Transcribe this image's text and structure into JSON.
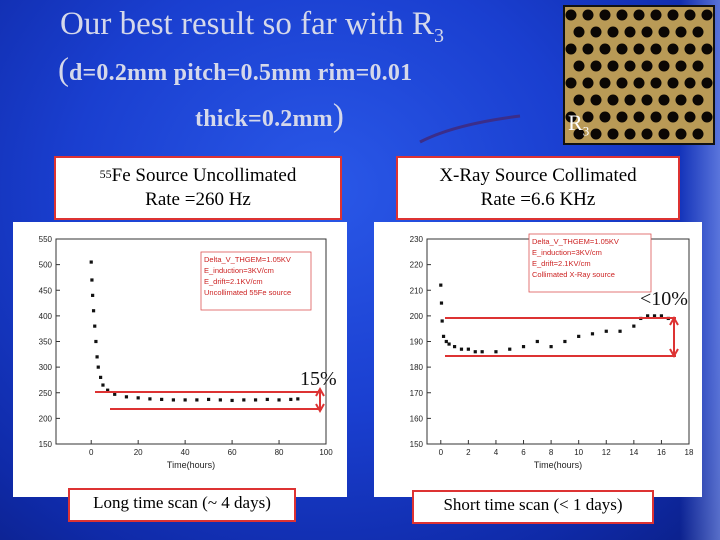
{
  "title": {
    "line1_prefix": "Our best result so far with R",
    "line1_sub": "3",
    "line2_open": "(",
    "line2_params": "d=0.2mm pitch=0.5mm rim=0.01",
    "line3_params": "thick=0.2mm",
    "line3_close": ")"
  },
  "photo": {
    "label": "R",
    "label_sub": "3"
  },
  "left_box": {
    "sup": "55",
    "line1": "Fe Source Uncollimated",
    "line2": "Rate =260 Hz"
  },
  "right_box": {
    "line1": "X-Ray Source Collimated",
    "line2": "Rate =6.6 KHz"
  },
  "left_note": "Long time scan (~ 4 days)",
  "right_note": "Short time scan (< 1 days)",
  "annotations": {
    "left_pct": "15%",
    "right_pct": "<10%"
  },
  "colors": {
    "accent": "#d33333",
    "background": "#1a3fd0",
    "hole": "#0b0704",
    "photo_bg": "#b99a56"
  },
  "chart_data": [
    {
      "type": "scatter",
      "title": "",
      "xlabel": "Time(hours)",
      "ylabel": "",
      "xlim": [
        -15,
        100
      ],
      "ylim": [
        150,
        550
      ],
      "xticks": [
        0,
        20,
        40,
        60,
        80,
        100
      ],
      "yticks": [
        150,
        200,
        250,
        300,
        350,
        400,
        450,
        500,
        550
      ],
      "legend_lines": [
        "Delta_V_THGEM=1.05KV",
        "E_induction=3KV/cm",
        "E_drift=2.1KV/cm",
        "Uncollimated 55Fe source"
      ],
      "legend_placement": "top-right",
      "x": [
        0,
        0.3,
        0.6,
        1,
        1.5,
        2,
        2.5,
        3,
        4,
        5,
        7,
        10,
        15,
        20,
        25,
        30,
        35,
        40,
        45,
        50,
        55,
        60,
        65,
        70,
        75,
        80,
        85,
        88
      ],
      "y": [
        505,
        470,
        440,
        410,
        380,
        350,
        320,
        300,
        280,
        265,
        255,
        247,
        242,
        240,
        238,
        237,
        236,
        236,
        236,
        237,
        236,
        235,
        236,
        236,
        237,
        236,
        237,
        238
      ]
    },
    {
      "type": "scatter",
      "title": "",
      "xlabel": "Time(hours)",
      "ylabel": "",
      "xlim": [
        -1,
        18
      ],
      "ylim": [
        150,
        230
      ],
      "xticks": [
        0,
        2,
        4,
        6,
        8,
        10,
        12,
        14,
        16,
        18
      ],
      "yticks": [
        150,
        160,
        170,
        180,
        190,
        200,
        210,
        220,
        230
      ],
      "legend_lines": [
        "Delta_V_THGEM=1.05KV",
        "E_induction=3KV/cm",
        "E_drift=2.1KV/cm",
        "Collimated X-Ray source"
      ],
      "legend_placement": "top-right",
      "x": [
        0,
        0.05,
        0.1,
        0.2,
        0.4,
        0.6,
        1,
        1.5,
        2,
        2.5,
        3,
        4,
        5,
        6,
        7,
        8,
        9,
        10,
        11,
        12,
        13,
        14,
        14.5,
        15,
        15.5,
        16,
        16.5
      ],
      "y": [
        212,
        205,
        198,
        192,
        190,
        189,
        188,
        187,
        187,
        186,
        186,
        186,
        187,
        188,
        190,
        188,
        190,
        192,
        193,
        194,
        194,
        196,
        199,
        200,
        200,
        200,
        199
      ]
    }
  ]
}
